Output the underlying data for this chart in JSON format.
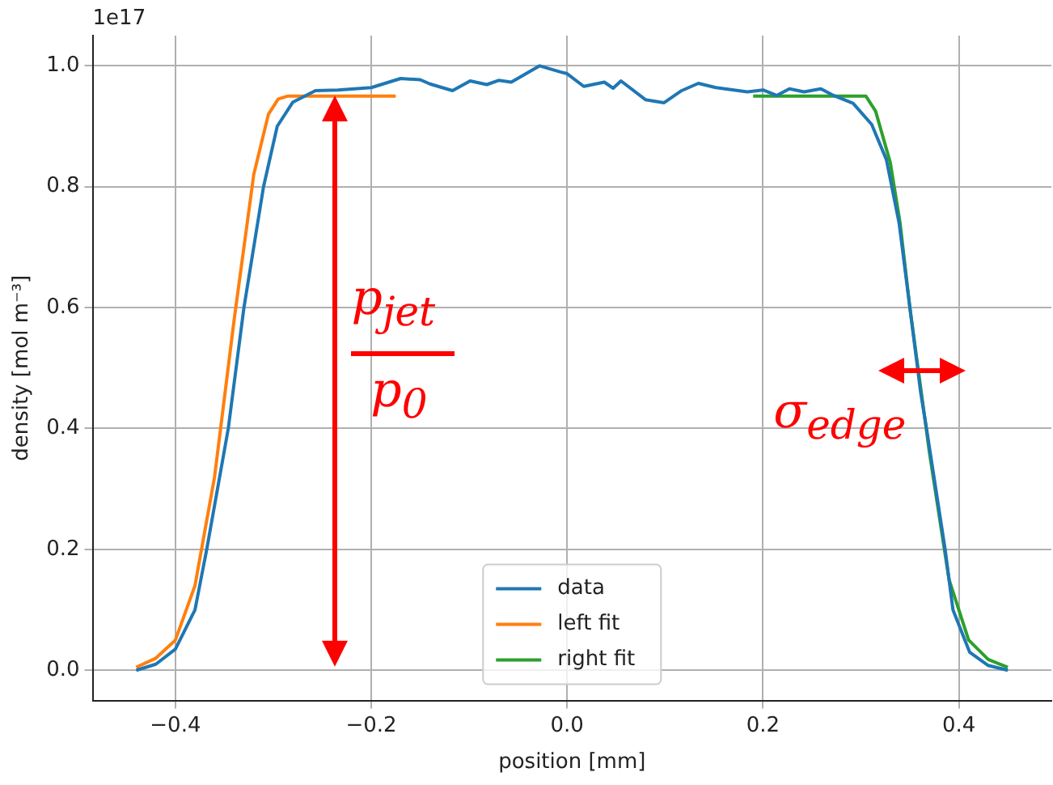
{
  "chart_data": {
    "type": "line",
    "xlabel": "position [mm]",
    "ylabel": "density [mol m⁻³]",
    "xlim": [
      -0.4845,
      0.4945
    ],
    "ylim": [
      -0.05,
      1.05
    ],
    "xticks": [
      {
        "value": -0.4,
        "label": "−0.4"
      },
      {
        "value": -0.2,
        "label": "−0.2"
      },
      {
        "value": 0,
        "label": "0.0"
      },
      {
        "value": 0.2,
        "label": "0.2"
      },
      {
        "value": 0.4,
        "label": "0.4"
      }
    ],
    "yticks": [
      {
        "value": 0,
        "label": "0.0"
      },
      {
        "value": 0.2,
        "label": "0.2"
      },
      {
        "value": 0.4,
        "label": "0.4"
      },
      {
        "value": 0.6,
        "label": "0.6"
      },
      {
        "value": 0.8,
        "label": "0.8"
      },
      {
        "value": 1.0,
        "label": "1.0"
      }
    ],
    "grid": true,
    "legend": "bottom",
    "marker": "none",
    "line_style": "solid",
    "series": [
      {
        "name": "data",
        "color": "#1f77b4",
        "x": [
          -0.44,
          -0.42,
          -0.4,
          -0.38,
          -0.368,
          -0.346,
          -0.33,
          -0.31,
          -0.296,
          -0.28,
          -0.257,
          -0.234,
          -0.2,
          -0.17,
          -0.15,
          -0.14,
          -0.117,
          -0.099,
          -0.082,
          -0.07,
          -0.057,
          -0.028,
          -0.007,
          0.0,
          0.017,
          0.038,
          0.047,
          0.055,
          0.08,
          0.099,
          0.117,
          0.134,
          0.152,
          0.184,
          0.2,
          0.214,
          0.227,
          0.242,
          0.259,
          0.272,
          0.292,
          0.311,
          0.326,
          0.339,
          0.35,
          0.361,
          0.367,
          0.386,
          0.394,
          0.411,
          0.43,
          0.45
        ],
        "values": [
          0.0,
          0.01,
          0.035,
          0.1,
          0.2,
          0.4,
          0.6,
          0.8,
          0.9,
          0.94,
          0.959,
          0.96,
          0.964,
          0.979,
          0.977,
          0.97,
          0.959,
          0.975,
          0.969,
          0.976,
          0.973,
          1.0,
          0.99,
          0.987,
          0.966,
          0.973,
          0.963,
          0.975,
          0.944,
          0.939,
          0.959,
          0.971,
          0.964,
          0.957,
          0.96,
          0.951,
          0.962,
          0.957,
          0.962,
          0.951,
          0.938,
          0.903,
          0.845,
          0.74,
          0.6,
          0.46,
          0.4,
          0.2,
          0.1,
          0.03,
          0.008,
          0.0
        ]
      },
      {
        "name": "left fit",
        "color": "#ff7f0e",
        "x": [
          -0.44,
          -0.42,
          -0.4,
          -0.38,
          -0.36,
          -0.34,
          -0.32,
          -0.305,
          -0.295,
          -0.285,
          -0.175
        ],
        "values": [
          0.005,
          0.02,
          0.05,
          0.14,
          0.32,
          0.58,
          0.82,
          0.92,
          0.945,
          0.95,
          0.95
        ]
      },
      {
        "name": "right fit",
        "color": "#2ca02c",
        "x": [
          0.19,
          0.305,
          0.315,
          0.33,
          0.34,
          0.35,
          0.37,
          0.39,
          0.41,
          0.43,
          0.45
        ],
        "values": [
          0.95,
          0.95,
          0.925,
          0.84,
          0.74,
          0.6,
          0.36,
          0.15,
          0.05,
          0.018,
          0.005
        ]
      }
    ],
    "annotations": [
      "1e17",
      "p$_{jet}$",
      "p$_{0}$",
      "σ$_{edge}$"
    ]
  }
}
